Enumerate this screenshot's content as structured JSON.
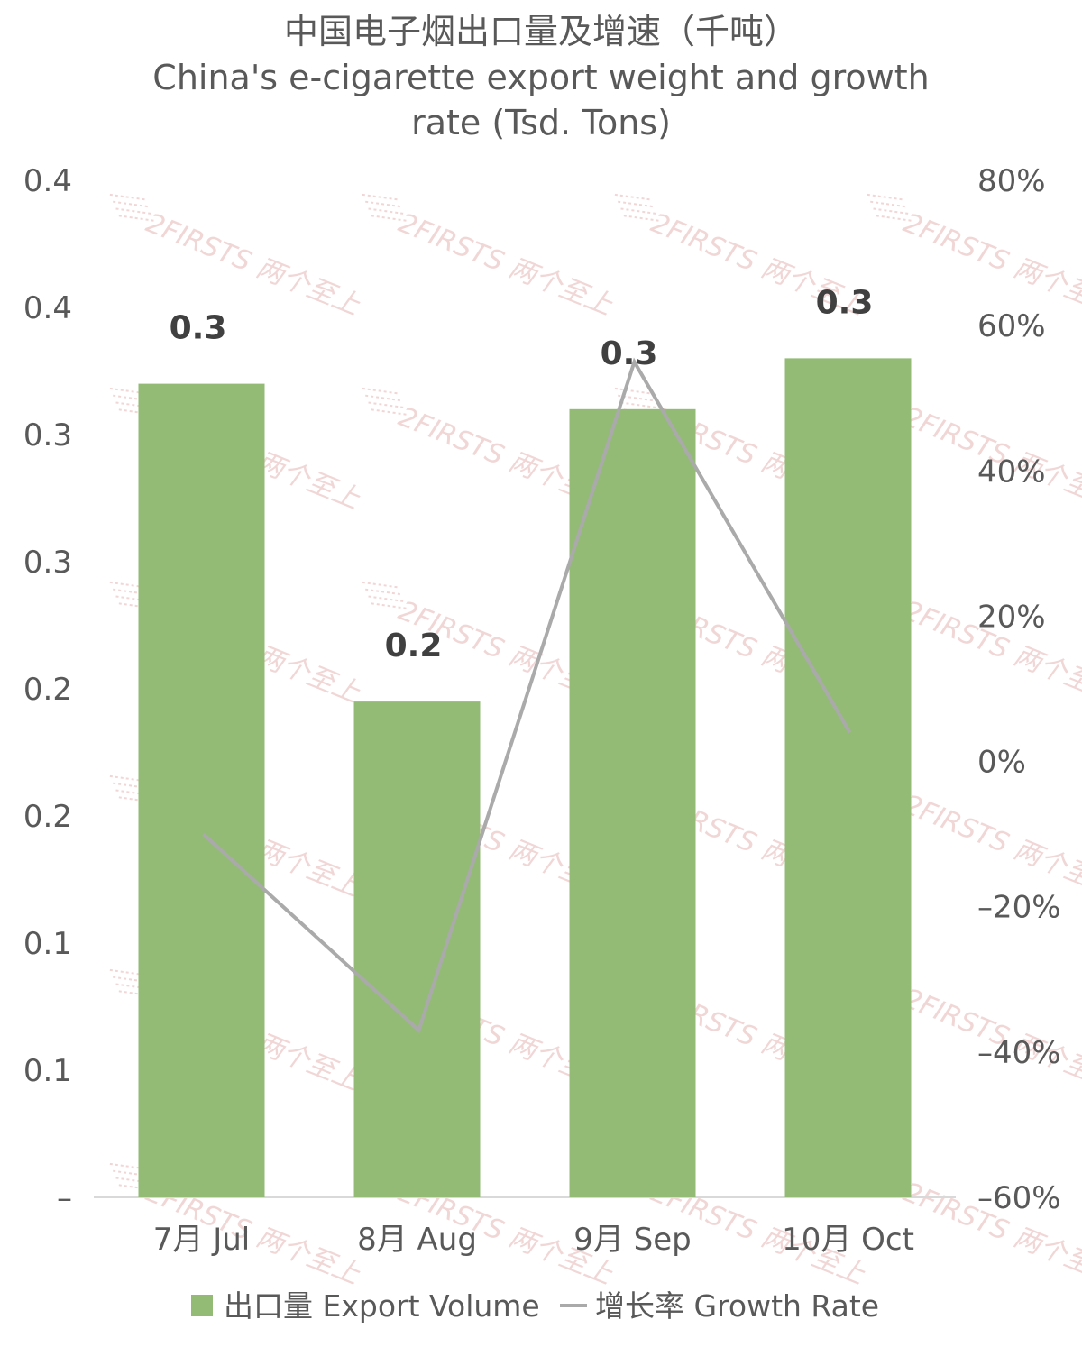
{
  "chart_data": {
    "type": "bar",
    "title": "中国电子烟出口量及增速（千吨）",
    "subtitle_line1": "China's e-cigarette export weight and growth",
    "subtitle_line2": "rate (Tsd. Tons)",
    "categories": [
      "7月 Jul",
      "8月 Aug",
      "9月 Sep",
      "10月 Oct"
    ],
    "series": [
      {
        "name": "出口量 Export Volume",
        "kind": "bar",
        "axis": "left",
        "color": "#93bb76",
        "values": [
          0.32,
          0.195,
          0.31,
          0.33
        ],
        "data_labels": [
          "0.3",
          "0.2",
          "0.3",
          "0.3"
        ]
      },
      {
        "name": "增长率 Growth Rate",
        "kind": "line",
        "axis": "right",
        "color": "#aaaaaa",
        "values": [
          -0.1,
          -0.37,
          0.55,
          0.04
        ]
      }
    ],
    "ylim_left": [
      0,
      0.4
    ],
    "yticks_left": [
      0,
      0.05,
      0.1,
      0.15,
      0.2,
      0.25,
      0.3,
      0.35,
      0.4
    ],
    "ytick_labels_left": [
      "–",
      "0.1",
      "0.1",
      "0.2",
      "0.2",
      "0.3",
      "0.3",
      "0.4",
      "0.4"
    ],
    "ylim_right": [
      -0.6,
      0.8
    ],
    "yticks_right": [
      -0.6,
      -0.4,
      -0.2,
      0,
      0.2,
      0.4,
      0.6,
      0.8
    ],
    "ytick_labels_right": [
      "–60%",
      "–40%",
      "–20%",
      "0%",
      "20%",
      "40%",
      "60%",
      "80%"
    ],
    "grid": false,
    "legend_position": "bottom"
  },
  "watermark": {
    "text": "2FIRSTS 两个至上",
    "color": "#e6b5b5"
  }
}
